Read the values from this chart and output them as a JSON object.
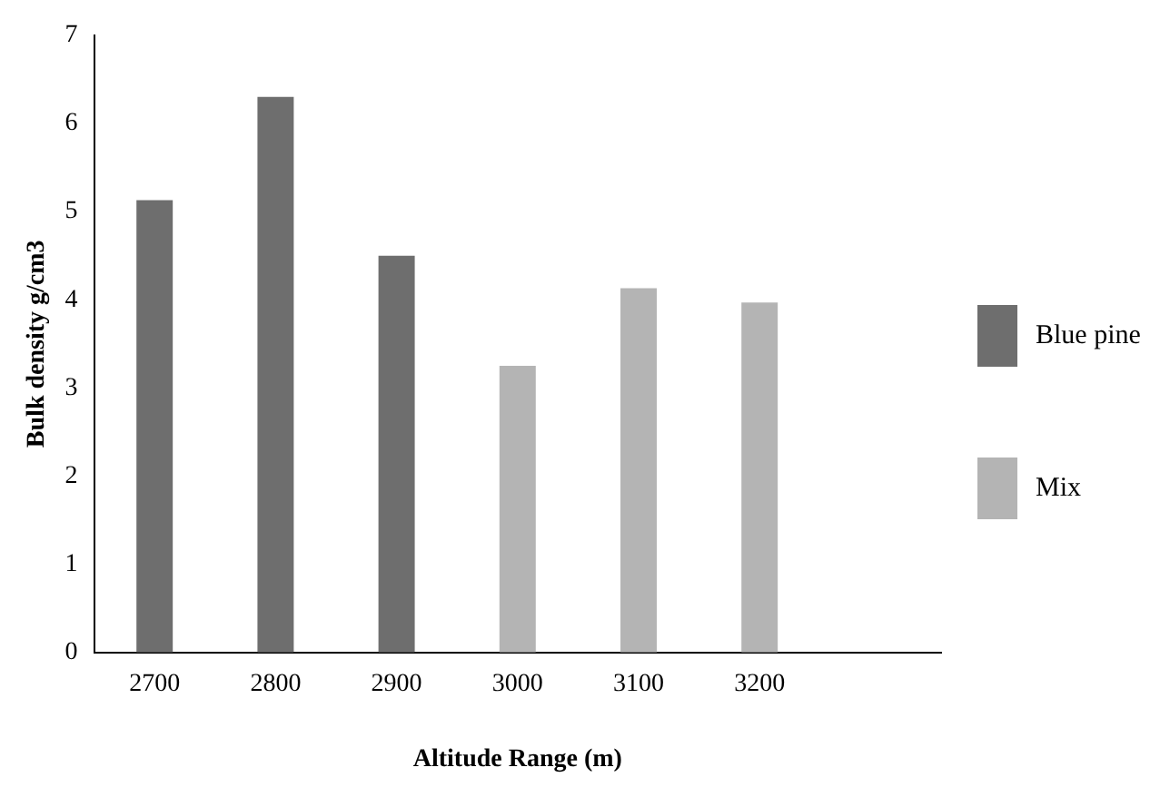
{
  "chart_data": {
    "type": "bar",
    "xlabel": "Altitude Range (m)",
    "ylabel": "Bulk density g/cm3",
    "categories": [
      "2700",
      "2800",
      "2900",
      "3000",
      "3100",
      "3200",
      null
    ],
    "series": [
      {
        "name": "Blue pine",
        "color": "#6e6e6e",
        "values": [
          5.13,
          6.3,
          4.5,
          null,
          null,
          null,
          null
        ]
      },
      {
        "name": "Mix",
        "color": "#b4b4b4",
        "values": [
          null,
          null,
          null,
          3.25,
          4.13,
          3.97,
          null
        ]
      }
    ],
    "ylim": [
      0,
      7
    ],
    "yticks": [
      0,
      1,
      2,
      3,
      4,
      5,
      6,
      7
    ],
    "grid": false,
    "legend": "right"
  }
}
